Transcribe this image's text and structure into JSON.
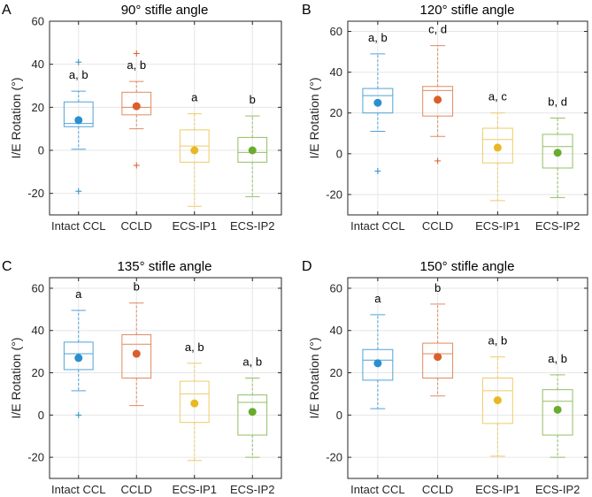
{
  "chart_data": [
    {
      "type": "box",
      "panel": "A",
      "title": "90° stifle angle",
      "ylabel": "I/E Rotation (°)",
      "ylim": [
        -30,
        60
      ],
      "yticks": [
        -20,
        0,
        20,
        40,
        60
      ],
      "grid": true,
      "categories": [
        "Intact CCL",
        "CCLD",
        "ECS-IP1",
        "ECS-IP2"
      ],
      "boxes": [
        {
          "whisker_low": 0.5,
          "q1": 11,
          "median": 12.5,
          "q3": 22.5,
          "whisker_high": 27.5,
          "mean": 14,
          "outliers": [
            41,
            -19
          ],
          "annotation": "a, b"
        },
        {
          "whisker_low": 10,
          "q1": 16.5,
          "median": 20,
          "q3": 27,
          "whisker_high": 32,
          "mean": 20.5,
          "outliers": [
            45,
            -7
          ],
          "annotation": "a, b"
        },
        {
          "whisker_low": -26,
          "q1": -5.5,
          "median": 2,
          "q3": 9.5,
          "whisker_high": 17,
          "mean": 0,
          "outliers": [],
          "annotation": "a"
        },
        {
          "whisker_low": -21.5,
          "q1": -5.5,
          "median": -1,
          "q3": 6,
          "whisker_high": 16,
          "mean": 0,
          "outliers": [],
          "annotation": "b"
        }
      ]
    },
    {
      "type": "box",
      "panel": "B",
      "title": "120° stifle angle",
      "ylabel": "I/E Rotation (°)",
      "ylim": [
        -30,
        65
      ],
      "yticks": [
        -20,
        0,
        20,
        40,
        60
      ],
      "grid": true,
      "categories": [
        "Intact CCL",
        "CCLD",
        "ECS-IP1",
        "ECS-IP2"
      ],
      "boxes": [
        {
          "whisker_low": 11,
          "q1": 20,
          "median": 28.5,
          "q3": 32,
          "whisker_high": 49,
          "mean": 25,
          "outliers": [
            -8.5
          ],
          "annotation": "a, b"
        },
        {
          "whisker_low": 8.5,
          "q1": 18.5,
          "median": 31,
          "q3": 33,
          "whisker_high": 53,
          "mean": 26.5,
          "outliers": [
            -3.5
          ],
          "annotation": "c, d"
        },
        {
          "whisker_low": -23,
          "q1": -4.5,
          "median": 7,
          "q3": 12.5,
          "whisker_high": 20,
          "mean": 3,
          "outliers": [],
          "annotation": "a, c"
        },
        {
          "whisker_low": -21.5,
          "q1": -7,
          "median": 3.5,
          "q3": 9.5,
          "whisker_high": 17.5,
          "mean": 0.5,
          "outliers": [],
          "annotation": "b, d"
        }
      ]
    },
    {
      "type": "box",
      "panel": "C",
      "title": "135° stifle angle",
      "ylabel": "I/E Rotation (°)",
      "ylim": [
        -30,
        65
      ],
      "yticks": [
        -20,
        0,
        20,
        40,
        60
      ],
      "grid": true,
      "categories": [
        "Intact CCL",
        "CCLD",
        "ECS-IP1",
        "ECS-IP2"
      ],
      "boxes": [
        {
          "whisker_low": 11.5,
          "q1": 21.5,
          "median": 29,
          "q3": 34.5,
          "whisker_high": 49.5,
          "mean": 27,
          "outliers": [
            0
          ],
          "annotation": "a"
        },
        {
          "whisker_low": 4.5,
          "q1": 17.5,
          "median": 33.5,
          "q3": 38,
          "whisker_high": 53,
          "mean": 29,
          "outliers": [],
          "annotation": "b"
        },
        {
          "whisker_low": -21.5,
          "q1": -3.5,
          "median": 10,
          "q3": 16,
          "whisker_high": 24.5,
          "mean": 5.5,
          "outliers": [],
          "annotation": "a, b"
        },
        {
          "whisker_low": -20,
          "q1": -9.5,
          "median": 6,
          "q3": 9.5,
          "whisker_high": 17.5,
          "mean": 1.5,
          "outliers": [],
          "annotation": "a, b"
        }
      ]
    },
    {
      "type": "box",
      "panel": "D",
      "title": "150° stifle angle",
      "ylabel": "I/E Rotation (°)",
      "ylim": [
        -30,
        65
      ],
      "yticks": [
        -20,
        0,
        20,
        40,
        60
      ],
      "grid": true,
      "categories": [
        "Intact CCL",
        "CCLD",
        "ECS-IP1",
        "ECS-IP2"
      ],
      "boxes": [
        {
          "whisker_low": 3,
          "q1": 16.5,
          "median": 26,
          "q3": 31,
          "whisker_high": 47.5,
          "mean": 24.5,
          "outliers": [],
          "annotation": "a"
        },
        {
          "whisker_low": 9,
          "q1": 17.5,
          "median": 29,
          "q3": 34,
          "whisker_high": 52.5,
          "mean": 27.5,
          "outliers": [],
          "annotation": "b"
        },
        {
          "whisker_low": -19.5,
          "q1": -4,
          "median": 11.5,
          "q3": 17.5,
          "whisker_high": 27.5,
          "mean": 7,
          "outliers": [],
          "annotation": "a, b"
        },
        {
          "whisker_low": -20,
          "q1": -9.5,
          "median": 6.5,
          "q3": 12,
          "whisker_high": 19,
          "mean": 2.5,
          "outliers": [],
          "annotation": "a, b"
        }
      ]
    }
  ],
  "colors": {
    "series": [
      "#2b8fcf",
      "#d95f2b",
      "#e8b923",
      "#6aab2e"
    ],
    "box_edge": [
      "#4fa3d9",
      "#e08a60",
      "#edcc6a",
      "#93bf66"
    ]
  }
}
